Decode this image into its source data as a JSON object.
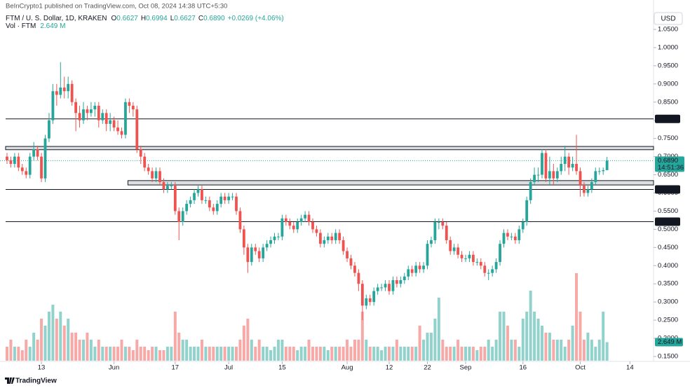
{
  "chart_data": {
    "type": "candlestick",
    "publisher": "BeInCrypto1 published on TradingView.com, Oct 08, 2024 14:38 UTC+5:30",
    "symbol": "FTM / U. S. Dollar, 1D, KRAKEN",
    "ohlc_header": [
      {
        "key": "O",
        "value": "0.6627"
      },
      {
        "key": "H",
        "value": "0.6994"
      },
      {
        "key": "L",
        "value": "0.6627"
      },
      {
        "key": "C",
        "value": "0.6890"
      }
    ],
    "change": "+0.0269 (+4.06%)",
    "volume_title": "Vol · FTM",
    "last_volume_label": "2.649 M",
    "currency": "USD",
    "brand": "TradingView",
    "up_color": "#26a69a",
    "down_color": "#ef5350",
    "volume_up_color": "rgba(38,166,154,0.5)",
    "volume_down_color": "rgba(239,83,80,0.5)",
    "ylim": [
      0.15,
      1.05
    ],
    "yticks": [
      {
        "value": 0.15,
        "label": "0.1500"
      },
      {
        "value": 0.2,
        "label": "0.2000"
      },
      {
        "value": 0.25,
        "label": "0.2500"
      },
      {
        "value": 0.3,
        "label": "0.3000"
      },
      {
        "value": 0.35,
        "label": "0.3500"
      },
      {
        "value": 0.4,
        "label": "0.4000"
      },
      {
        "value": 0.45,
        "label": "0.4500"
      },
      {
        "value": 0.5,
        "label": "0.5000"
      },
      {
        "value": 0.55,
        "label": "0.5500"
      },
      {
        "value": 0.6,
        "label": "0.6000"
      },
      {
        "value": 0.65,
        "label": "0.6500"
      },
      {
        "value": 0.7,
        "label": "0.7000"
      },
      {
        "value": 0.75,
        "label": "0.7500"
      },
      {
        "value": 0.8,
        "label": "0.8000"
      },
      {
        "value": 0.85,
        "label": "0.8500"
      },
      {
        "value": 0.9,
        "label": "0.9000"
      },
      {
        "value": 0.95,
        "label": "0.9500"
      },
      {
        "value": 1.0,
        "label": "1.0000"
      },
      {
        "value": 1.05,
        "label": "1.0500"
      }
    ],
    "xticks": [
      {
        "value": 9,
        "label": "13"
      },
      {
        "value": 28,
        "label": "Jun"
      },
      {
        "value": 44,
        "label": "17"
      },
      {
        "value": 58,
        "label": "Jul"
      },
      {
        "value": 72,
        "label": "15"
      },
      {
        "value": 89,
        "label": "Aug"
      },
      {
        "value": 100,
        "label": "12"
      },
      {
        "value": 110,
        "label": "22"
      },
      {
        "value": 120,
        "label": "Sep"
      },
      {
        "value": 135,
        "label": "16"
      },
      {
        "value": 150,
        "label": "Oct"
      },
      {
        "value": 163,
        "label": "14"
      }
    ],
    "levels": [
      0.8038,
      0.6097,
      0.5209
    ],
    "zones": [
      {
        "from": 0,
        "low": 0.719,
        "high": 0.728
      },
      {
        "from": 32,
        "low": 0.622,
        "high": 0.634
      }
    ],
    "last_price": {
      "value": 0.689,
      "label": "0.6890",
      "countdown": "14:51:36"
    },
    "open": [
      0.7,
      0.69,
      0.68,
      0.7,
      0.67,
      0.66,
      0.65,
      0.7,
      0.72,
      0.7,
      0.64,
      0.75,
      0.8,
      0.88,
      0.87,
      0.89,
      0.88,
      0.9,
      0.85,
      0.82,
      0.8,
      0.83,
      0.82,
      0.83,
      0.84,
      0.8,
      0.82,
      0.79,
      0.8,
      0.78,
      0.77,
      0.76,
      0.85,
      0.84,
      0.83,
      0.72,
      0.7,
      0.67,
      0.66,
      0.64,
      0.66,
      0.63,
      0.61,
      0.62,
      0.62,
      0.55,
      0.52,
      0.55,
      0.57,
      0.58,
      0.6,
      0.61,
      0.58,
      0.58,
      0.56,
      0.55,
      0.57,
      0.59,
      0.58,
      0.59,
      0.59,
      0.55,
      0.5,
      0.45,
      0.41,
      0.45,
      0.44,
      0.42,
      0.45,
      0.46,
      0.47,
      0.48,
      0.48,
      0.53,
      0.52,
      0.51,
      0.5,
      0.52,
      0.53,
      0.54,
      0.52,
      0.5,
      0.49,
      0.46,
      0.47,
      0.48,
      0.47,
      0.49,
      0.47,
      0.44,
      0.42,
      0.4,
      0.38,
      0.35,
      0.29,
      0.31,
      0.3,
      0.33,
      0.34,
      0.34,
      0.35,
      0.33,
      0.36,
      0.35,
      0.36,
      0.37,
      0.39,
      0.38,
      0.4,
      0.39,
      0.4,
      0.46,
      0.47,
      0.52,
      0.52,
      0.51,
      0.47,
      0.44,
      0.45,
      0.43,
      0.42,
      0.42,
      0.43,
      0.41,
      0.41,
      0.4,
      0.38,
      0.38,
      0.39,
      0.41,
      0.46,
      0.49,
      0.48,
      0.48,
      0.47,
      0.5,
      0.52,
      0.58,
      0.63,
      0.65,
      0.65,
      0.71,
      0.64,
      0.66,
      0.64,
      0.66,
      0.68,
      0.7,
      0.67,
      0.68,
      0.66,
      0.62,
      0.6,
      0.61,
      0.63,
      0.66,
      0.66,
      0.6627
    ],
    "high": [
      0.71,
      0.7,
      0.71,
      0.71,
      0.68,
      0.67,
      0.71,
      0.74,
      0.73,
      0.71,
      0.76,
      0.82,
      0.9,
      0.9,
      0.96,
      0.92,
      0.92,
      0.91,
      0.86,
      0.84,
      0.85,
      0.84,
      0.85,
      0.85,
      0.85,
      0.83,
      0.83,
      0.82,
      0.81,
      0.8,
      0.78,
      0.86,
      0.86,
      0.85,
      0.84,
      0.73,
      0.71,
      0.68,
      0.67,
      0.67,
      0.67,
      0.64,
      0.63,
      0.63,
      0.63,
      0.56,
      0.56,
      0.58,
      0.59,
      0.61,
      0.62,
      0.62,
      0.59,
      0.59,
      0.57,
      0.58,
      0.6,
      0.6,
      0.6,
      0.6,
      0.6,
      0.56,
      0.51,
      0.46,
      0.46,
      0.46,
      0.45,
      0.46,
      0.47,
      0.48,
      0.49,
      0.49,
      0.54,
      0.54,
      0.53,
      0.52,
      0.53,
      0.54,
      0.55,
      0.55,
      0.53,
      0.51,
      0.5,
      0.48,
      0.49,
      0.49,
      0.5,
      0.5,
      0.48,
      0.45,
      0.43,
      0.41,
      0.39,
      0.36,
      0.32,
      0.32,
      0.34,
      0.35,
      0.35,
      0.36,
      0.36,
      0.37,
      0.37,
      0.37,
      0.38,
      0.4,
      0.4,
      0.41,
      0.41,
      0.41,
      0.47,
      0.48,
      0.53,
      0.53,
      0.53,
      0.52,
      0.48,
      0.46,
      0.46,
      0.44,
      0.43,
      0.44,
      0.44,
      0.42,
      0.42,
      0.41,
      0.39,
      0.4,
      0.42,
      0.47,
      0.5,
      0.5,
      0.49,
      0.49,
      0.51,
      0.53,
      0.59,
      0.64,
      0.67,
      0.67,
      0.72,
      0.72,
      0.7,
      0.68,
      0.67,
      0.7,
      0.73,
      0.71,
      0.7,
      0.76,
      0.67,
      0.63,
      0.62,
      0.64,
      0.67,
      0.67,
      0.67,
      0.6994
    ],
    "low": [
      0.68,
      0.67,
      0.67,
      0.66,
      0.65,
      0.64,
      0.64,
      0.69,
      0.69,
      0.63,
      0.63,
      0.74,
      0.79,
      0.84,
      0.86,
      0.86,
      0.86,
      0.84,
      0.77,
      0.78,
      0.79,
      0.8,
      0.81,
      0.81,
      0.78,
      0.79,
      0.77,
      0.77,
      0.77,
      0.76,
      0.75,
      0.75,
      0.82,
      0.81,
      0.71,
      0.68,
      0.66,
      0.65,
      0.63,
      0.63,
      0.62,
      0.6,
      0.6,
      0.61,
      0.54,
      0.47,
      0.51,
      0.54,
      0.56,
      0.57,
      0.59,
      0.57,
      0.57,
      0.55,
      0.54,
      0.54,
      0.56,
      0.57,
      0.57,
      0.58,
      0.54,
      0.49,
      0.43,
      0.38,
      0.4,
      0.43,
      0.41,
      0.41,
      0.44,
      0.45,
      0.46,
      0.47,
      0.47,
      0.51,
      0.5,
      0.49,
      0.49,
      0.51,
      0.52,
      0.51,
      0.49,
      0.48,
      0.45,
      0.45,
      0.46,
      0.46,
      0.46,
      0.46,
      0.43,
      0.41,
      0.39,
      0.37,
      0.33,
      0.25,
      0.28,
      0.29,
      0.29,
      0.32,
      0.33,
      0.33,
      0.32,
      0.32,
      0.34,
      0.34,
      0.35,
      0.36,
      0.37,
      0.37,
      0.38,
      0.38,
      0.39,
      0.45,
      0.46,
      0.5,
      0.5,
      0.46,
      0.43,
      0.43,
      0.42,
      0.41,
      0.41,
      0.41,
      0.4,
      0.4,
      0.39,
      0.37,
      0.36,
      0.37,
      0.38,
      0.4,
      0.45,
      0.47,
      0.47,
      0.46,
      0.46,
      0.49,
      0.51,
      0.57,
      0.62,
      0.63,
      0.64,
      0.63,
      0.62,
      0.62,
      0.63,
      0.65,
      0.66,
      0.65,
      0.66,
      0.65,
      0.59,
      0.59,
      0.59,
      0.6,
      0.62,
      0.65,
      0.65,
      0.6627
    ],
    "close": [
      0.69,
      0.68,
      0.7,
      0.67,
      0.66,
      0.65,
      0.7,
      0.72,
      0.7,
      0.64,
      0.75,
      0.8,
      0.88,
      0.87,
      0.89,
      0.88,
      0.9,
      0.85,
      0.82,
      0.8,
      0.83,
      0.82,
      0.83,
      0.84,
      0.8,
      0.82,
      0.79,
      0.8,
      0.78,
      0.77,
      0.76,
      0.85,
      0.84,
      0.83,
      0.72,
      0.7,
      0.67,
      0.66,
      0.64,
      0.66,
      0.63,
      0.61,
      0.62,
      0.62,
      0.55,
      0.52,
      0.55,
      0.57,
      0.58,
      0.6,
      0.61,
      0.58,
      0.58,
      0.56,
      0.55,
      0.57,
      0.59,
      0.58,
      0.59,
      0.59,
      0.55,
      0.5,
      0.45,
      0.41,
      0.45,
      0.44,
      0.42,
      0.45,
      0.46,
      0.47,
      0.48,
      0.48,
      0.53,
      0.52,
      0.51,
      0.5,
      0.52,
      0.53,
      0.54,
      0.52,
      0.5,
      0.49,
      0.46,
      0.47,
      0.48,
      0.47,
      0.49,
      0.47,
      0.44,
      0.42,
      0.4,
      0.38,
      0.35,
      0.29,
      0.31,
      0.3,
      0.33,
      0.34,
      0.34,
      0.35,
      0.33,
      0.36,
      0.35,
      0.36,
      0.37,
      0.39,
      0.38,
      0.4,
      0.39,
      0.4,
      0.46,
      0.47,
      0.52,
      0.52,
      0.51,
      0.47,
      0.44,
      0.45,
      0.43,
      0.42,
      0.42,
      0.43,
      0.41,
      0.41,
      0.4,
      0.38,
      0.38,
      0.39,
      0.41,
      0.46,
      0.49,
      0.48,
      0.48,
      0.47,
      0.5,
      0.52,
      0.58,
      0.63,
      0.65,
      0.65,
      0.71,
      0.64,
      0.66,
      0.64,
      0.66,
      0.68,
      0.7,
      0.67,
      0.68,
      0.66,
      0.62,
      0.6,
      0.61,
      0.63,
      0.66,
      0.66,
      0.6627,
      0.689
    ],
    "volume": [
      2,
      3,
      2,
      2,
      1.5,
      3,
      2,
      4,
      3,
      6,
      5,
      7,
      8,
      6,
      7,
      5,
      6,
      4,
      4,
      3,
      3,
      4,
      3,
      2,
      3,
      2,
      2,
      2,
      2,
      2,
      3,
      2,
      2,
      1.5,
      3,
      2,
      2,
      1.5,
      2,
      2,
      1.5,
      1.5,
      2,
      2,
      7,
      4,
      3,
      3,
      2,
      2,
      2,
      3,
      2,
      2,
      2,
      2,
      2,
      2,
      2,
      2,
      2,
      3,
      5,
      6,
      3,
      2,
      3,
      2,
      2,
      1.5,
      2,
      3,
      3,
      2,
      2,
      2,
      1.5,
      2,
      2,
      3,
      2,
      2,
      2,
      2,
      1.5,
      2,
      2,
      2,
      2,
      3,
      2,
      3,
      3,
      7,
      3,
      2,
      2,
      2,
      1.5,
      2,
      2,
      2,
      3,
      2,
      2,
      2,
      2,
      2,
      5,
      3,
      4,
      4,
      6,
      9,
      3,
      2,
      2,
      2,
      3,
      2,
      2,
      2,
      2,
      1.5,
      2,
      2,
      3,
      2,
      3,
      7,
      7,
      5,
      3,
      3,
      2,
      6,
      7,
      10,
      7,
      6,
      5,
      4,
      4,
      3,
      3,
      3,
      2,
      3,
      5,
      12.5,
      7,
      3,
      4,
      3,
      2,
      3,
      7,
      2.649
    ]
  }
}
